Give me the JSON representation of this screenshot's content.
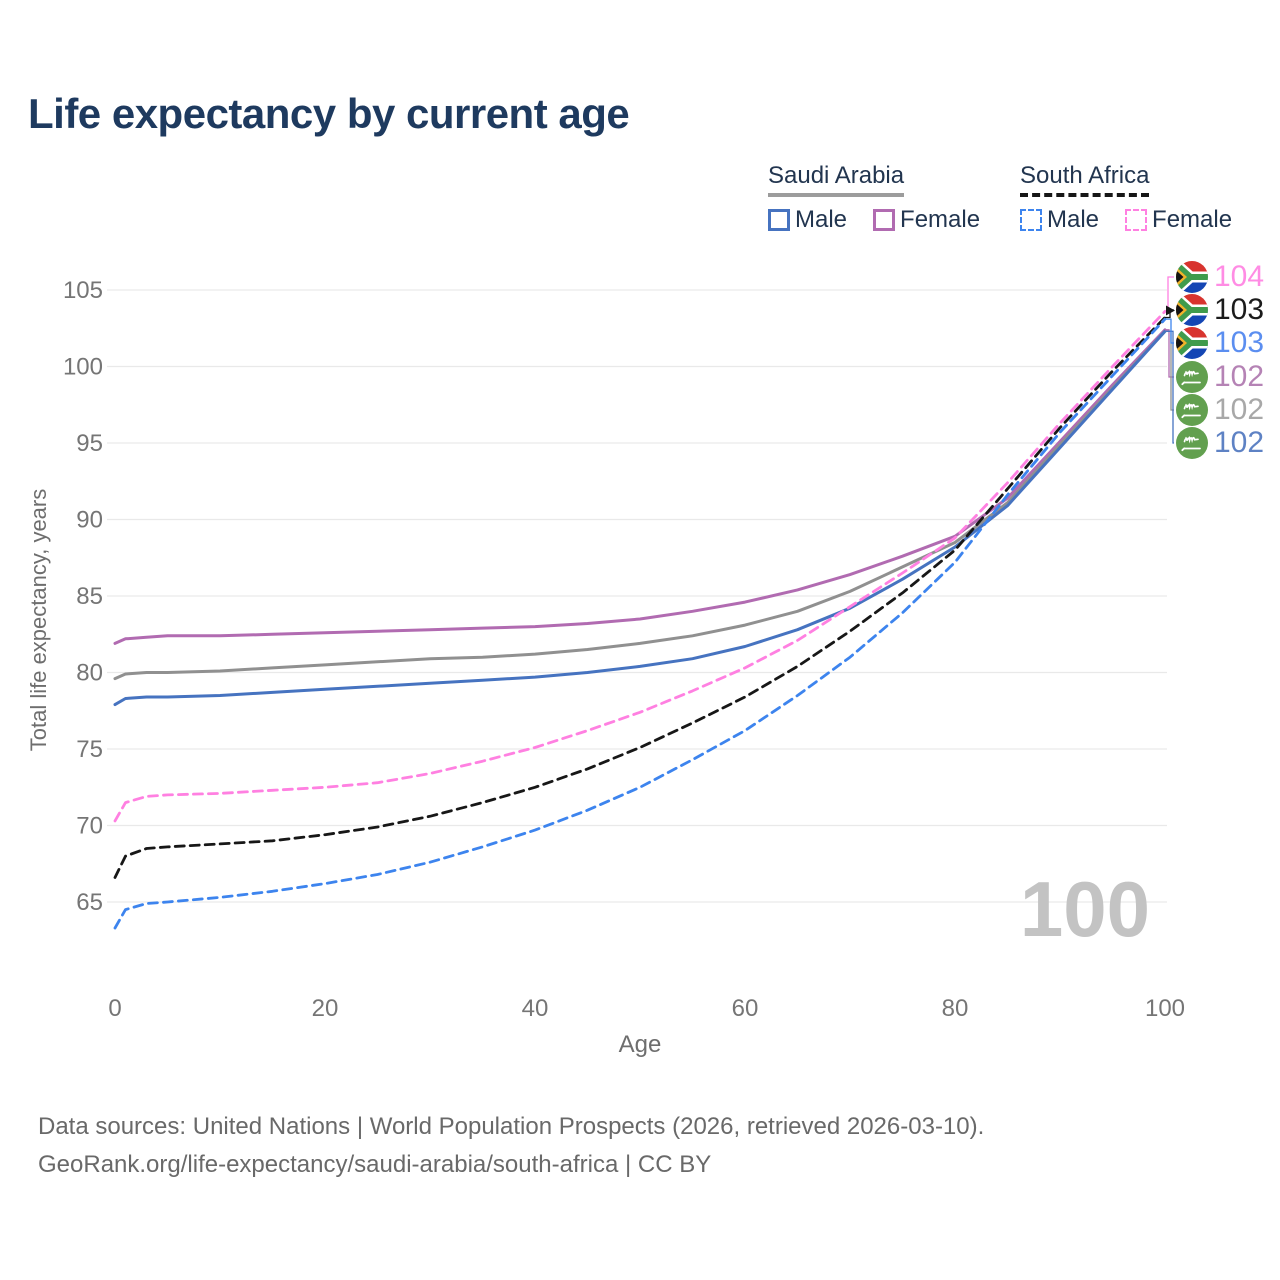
{
  "page": {
    "title": "Life expectancy by current age"
  },
  "legend": {
    "groups": [
      {
        "country": "Saudi Arabia",
        "line_style": "solid",
        "underline_color": "#9c9c9c",
        "items": [
          {
            "label": "Male",
            "color": "#4673c0"
          },
          {
            "label": "Female",
            "color": "#b16bb1"
          }
        ]
      },
      {
        "country": "South Africa",
        "line_style": "dashed",
        "underline_color": "#161616",
        "items": [
          {
            "label": "Male",
            "color": "#3d84ee"
          },
          {
            "label": "Female",
            "color": "#ff80e1"
          }
        ]
      }
    ]
  },
  "chart_data": {
    "type": "line",
    "title": "Life expectancy by current age",
    "xlabel": "Age",
    "ylabel": "Total life expectancy, years",
    "x_ticks": [
      0,
      20,
      40,
      60,
      80,
      100
    ],
    "y_ticks": [
      65,
      70,
      75,
      80,
      85,
      90,
      95,
      100,
      105
    ],
    "xlim": [
      0,
      100
    ],
    "ylim": [
      63,
      105.5
    ],
    "grid": "horizontal-only",
    "legend_position": "top-right",
    "watermark": "100",
    "ages": [
      0,
      1,
      3,
      5,
      10,
      15,
      20,
      25,
      30,
      35,
      40,
      45,
      50,
      55,
      60,
      65,
      70,
      75,
      80,
      85,
      90,
      95,
      100
    ],
    "series": [
      {
        "name": "Saudi Arabia Female",
        "country": "Saudi Arabia",
        "sex": "Female",
        "color": "#b16bb1",
        "dashed": false,
        "end_label": "102",
        "label_row": 3,
        "values": [
          81.9,
          82.2,
          82.3,
          82.4,
          82.4,
          82.5,
          82.6,
          82.7,
          82.8,
          82.9,
          83.0,
          83.2,
          83.5,
          84.0,
          84.6,
          85.4,
          86.4,
          87.6,
          88.9,
          91.4,
          95.1,
          98.8,
          102.4
        ]
      },
      {
        "name": "Saudi Arabia Both sexes",
        "country": "Saudi Arabia",
        "sex": "Both",
        "color": "#909090",
        "dashed": false,
        "end_label": "102",
        "label_row": 4,
        "values": [
          79.6,
          79.9,
          80.0,
          80.0,
          80.1,
          80.3,
          80.5,
          80.7,
          80.9,
          81.0,
          81.2,
          81.5,
          81.9,
          82.4,
          83.1,
          84.0,
          85.3,
          86.9,
          88.5,
          91.1,
          94.9,
          98.6,
          102.3
        ]
      },
      {
        "name": "Saudi Arabia Male",
        "country": "Saudi Arabia",
        "sex": "Male",
        "color": "#4673c0",
        "dashed": false,
        "end_label": "102",
        "label_row": 5,
        "values": [
          77.9,
          78.3,
          78.4,
          78.4,
          78.5,
          78.7,
          78.9,
          79.1,
          79.3,
          79.5,
          79.7,
          80.0,
          80.4,
          80.9,
          81.7,
          82.8,
          84.2,
          86.1,
          88.2,
          90.9,
          94.7,
          98.5,
          102.3
        ]
      },
      {
        "name": "South Africa Female",
        "country": "South Africa",
        "sex": "Female",
        "color": "#ff80e1",
        "dashed": true,
        "end_label": "104",
        "label_row": 0,
        "values": [
          70.3,
          71.5,
          71.9,
          72.0,
          72.1,
          72.3,
          72.5,
          72.8,
          73.4,
          74.2,
          75.1,
          76.2,
          77.4,
          78.8,
          80.3,
          82.1,
          84.3,
          86.5,
          88.8,
          92.4,
          96.3,
          100.0,
          103.6
        ]
      },
      {
        "name": "South Africa Both sexes",
        "country": "South Africa",
        "sex": "Both",
        "color": "#171717",
        "dashed": true,
        "end_label": "103",
        "label_row": 1,
        "values": [
          66.6,
          68.0,
          68.5,
          68.6,
          68.8,
          69.0,
          69.4,
          69.9,
          70.6,
          71.5,
          72.5,
          73.7,
          75.1,
          76.7,
          78.4,
          80.4,
          82.7,
          85.2,
          88.0,
          92.0,
          96.0,
          99.7,
          103.2
        ]
      },
      {
        "name": "South Africa Male",
        "country": "South Africa",
        "sex": "Male",
        "color": "#3d84ee",
        "dashed": true,
        "end_label": "103",
        "label_row": 2,
        "values": [
          63.3,
          64.5,
          64.9,
          65.0,
          65.3,
          65.7,
          66.2,
          66.8,
          67.6,
          68.6,
          69.7,
          71.0,
          72.5,
          74.3,
          76.2,
          78.5,
          81.0,
          83.9,
          87.2,
          91.6,
          95.7,
          99.4,
          103.1
        ]
      }
    ]
  },
  "end_labels": [
    {
      "value": "104",
      "color": "#ff8ce4",
      "flag": "south-africa"
    },
    {
      "value": "103",
      "color": "#1b1b1b",
      "flag": "south-africa"
    },
    {
      "value": "103",
      "color": "#5b8ef0",
      "flag": "south-africa"
    },
    {
      "value": "102",
      "color": "#b583b5",
      "flag": "saudi-arabia"
    },
    {
      "value": "102",
      "color": "#a8a8a8",
      "flag": "saudi-arabia"
    },
    {
      "value": "102",
      "color": "#5e82c4",
      "flag": "saudi-arabia"
    }
  ],
  "footer": {
    "line1": "Data sources: United Nations | World Population Prospects (2026, retrieved 2026-03-10).",
    "line2": "GeoRank.org/life-expectancy/saudi-arabia/south-africa | CC BY"
  }
}
